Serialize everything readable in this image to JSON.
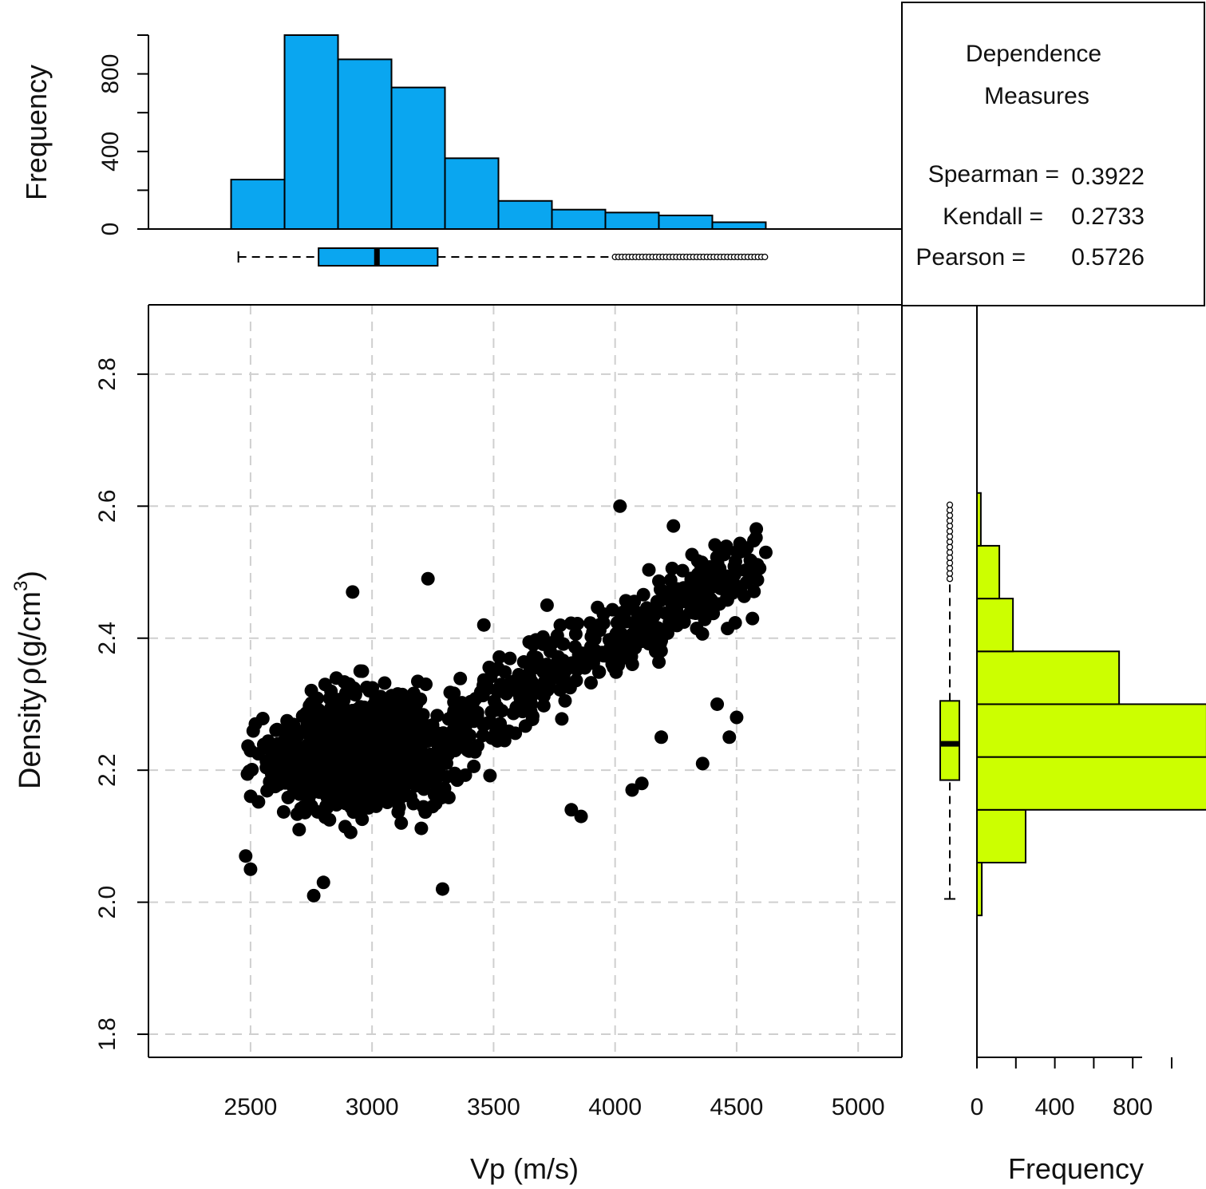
{
  "chart_data": [
    {
      "type": "histogram",
      "name": "vp-histogram",
      "ylabel": "Frequency",
      "ylim": [
        0,
        1000
      ],
      "yticks": [
        "0",
        "400",
        "800"
      ],
      "bins": [
        {
          "from": 2420,
          "to": 2640,
          "count": 255
        },
        {
          "from": 2640,
          "to": 2860,
          "count": 1000
        },
        {
          "from": 2860,
          "to": 3080,
          "count": 875
        },
        {
          "from": 3080,
          "to": 3300,
          "count": 730
        },
        {
          "from": 3300,
          "to": 3520,
          "count": 365
        },
        {
          "from": 3520,
          "to": 3740,
          "count": 145
        },
        {
          "from": 3740,
          "to": 3960,
          "count": 100
        },
        {
          "from": 3960,
          "to": 4180,
          "count": 85
        },
        {
          "from": 4180,
          "to": 4400,
          "count": 70
        },
        {
          "from": 4400,
          "to": 4620,
          "count": 35
        }
      ],
      "color": "#0aa6f0",
      "boxplot": {
        "min": 2450,
        "q1": 2780,
        "median": 3020,
        "q3": 3270,
        "whisker_high": 4000,
        "outliers_from": 4000,
        "outliers_to": 4620
      }
    },
    {
      "type": "scatter",
      "name": "vp-density-scatter",
      "xlabel": "Vp (m/s)",
      "ylabel_prefix": "Density",
      "ylabel_symbol": "ρ",
      "ylabel_unit": "(g/cm",
      "ylabel_sup": "3",
      "ylabel_close": ")",
      "xlim": [
        2080,
        5180
      ],
      "ylim": [
        1.765,
        2.905
      ],
      "xticks": [
        "2500",
        "3000",
        "3500",
        "4000",
        "4500",
        "5000"
      ],
      "yticks": [
        "1.8",
        "2.0",
        "2.2",
        "2.4",
        "2.6",
        "2.8"
      ],
      "grid": true,
      "color": "#000000",
      "points_sample": [
        {
          "x": 2480,
          "y": 2.07
        },
        {
          "x": 2500,
          "y": 2.05
        },
        {
          "x": 2520,
          "y": 2.27
        },
        {
          "x": 2700,
          "y": 2.11
        },
        {
          "x": 2760,
          "y": 2.01
        },
        {
          "x": 2800,
          "y": 2.03
        },
        {
          "x": 2920,
          "y": 2.47
        },
        {
          "x": 2960,
          "y": 2.35
        },
        {
          "x": 3120,
          "y": 2.12
        },
        {
          "x": 3230,
          "y": 2.49
        },
        {
          "x": 3290,
          "y": 2.02
        },
        {
          "x": 3460,
          "y": 2.42
        },
        {
          "x": 3720,
          "y": 2.45
        },
        {
          "x": 3820,
          "y": 2.14
        },
        {
          "x": 3860,
          "y": 2.13
        },
        {
          "x": 4020,
          "y": 2.6
        },
        {
          "x": 4070,
          "y": 2.17
        },
        {
          "x": 4110,
          "y": 2.18
        },
        {
          "x": 4190,
          "y": 2.25
        },
        {
          "x": 4240,
          "y": 2.57
        },
        {
          "x": 4360,
          "y": 2.21
        },
        {
          "x": 4420,
          "y": 2.3
        },
        {
          "x": 4470,
          "y": 2.25
        },
        {
          "x": 4500,
          "y": 2.28
        },
        {
          "x": 4620,
          "y": 2.53
        }
      ]
    },
    {
      "type": "histogram-horizontal",
      "name": "density-histogram",
      "xlabel": "Frequency",
      "xlim": [
        0,
        1000
      ],
      "xticks": [
        "0",
        "400",
        "800"
      ],
      "bins": [
        {
          "from": 1.98,
          "to": 2.06,
          "count": 25
        },
        {
          "from": 2.06,
          "to": 2.14,
          "count": 250
        },
        {
          "from": 2.14,
          "to": 2.22,
          "count": 1200
        },
        {
          "from": 2.22,
          "to": 2.3,
          "count": 1180
        },
        {
          "from": 2.3,
          "to": 2.38,
          "count": 730
        },
        {
          "from": 2.38,
          "to": 2.46,
          "count": 185
        },
        {
          "from": 2.46,
          "to": 2.54,
          "count": 115
        },
        {
          "from": 2.54,
          "to": 2.62,
          "count": 20
        }
      ],
      "color": "#ccff00",
      "boxplot": {
        "min": 2.005,
        "q1": 2.185,
        "median": 2.24,
        "q3": 2.305,
        "whisker_high": 2.49,
        "outliers_from": 2.49,
        "outliers_to": 2.605
      }
    }
  ],
  "legend": {
    "title_line1": "Dependence",
    "title_line2": "Measures",
    "rows": [
      {
        "label": "Spearman =",
        "value": "0.3922"
      },
      {
        "label": "Kendall =",
        "value": "0.2733"
      },
      {
        "label": "Pearson =",
        "value": "0.5726"
      }
    ]
  }
}
